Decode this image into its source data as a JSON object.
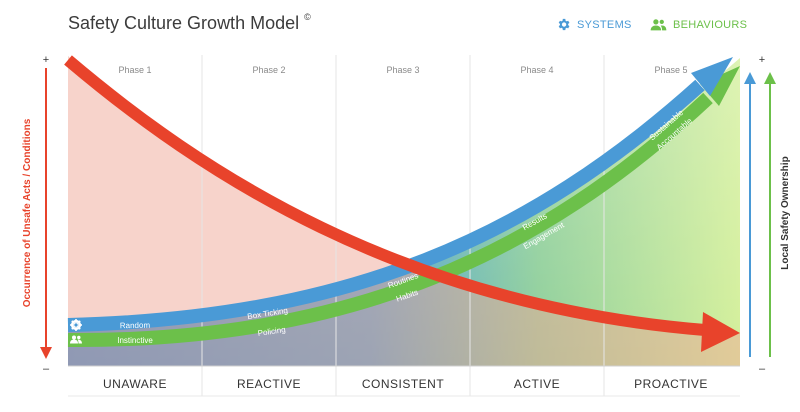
{
  "title": "Safety Culture Growth Model",
  "title_mark": "©",
  "legend": {
    "systems": {
      "label": "SYSTEMS",
      "icon": "gear-icon",
      "color": "#4a9ad6"
    },
    "behaviours": {
      "label": "BEHAVIOURS",
      "icon": "people-icon",
      "color": "#6cc04a"
    }
  },
  "phases": [
    "Phase 1",
    "Phase 2",
    "Phase 3",
    "Phase 4",
    "Phase 5"
  ],
  "stages": [
    "UNAWARE",
    "REACTIVE",
    "CONSISTENT",
    "ACTIVE",
    "PROACTIVE"
  ],
  "left_axis": {
    "label": "Occurrence of Unsafe Acts / Conditions",
    "top": "+",
    "bottom": "–",
    "color": "#e8432b"
  },
  "right_axis": {
    "label": "Local Safety Ownership",
    "top": "+",
    "bottom": "–"
  },
  "systems_curve": {
    "labels": [
      "Random",
      "Box Ticking",
      "Routines",
      "Results",
      "Sustainable"
    ],
    "color": "#4a9ad6"
  },
  "behaviours_curve": {
    "labels": [
      "Instinctive",
      "Policing",
      "Habits",
      "Engagement",
      "Accountable"
    ],
    "color": "#6cc04a"
  },
  "unsafe_curve": {
    "color": "#e8432b"
  }
}
